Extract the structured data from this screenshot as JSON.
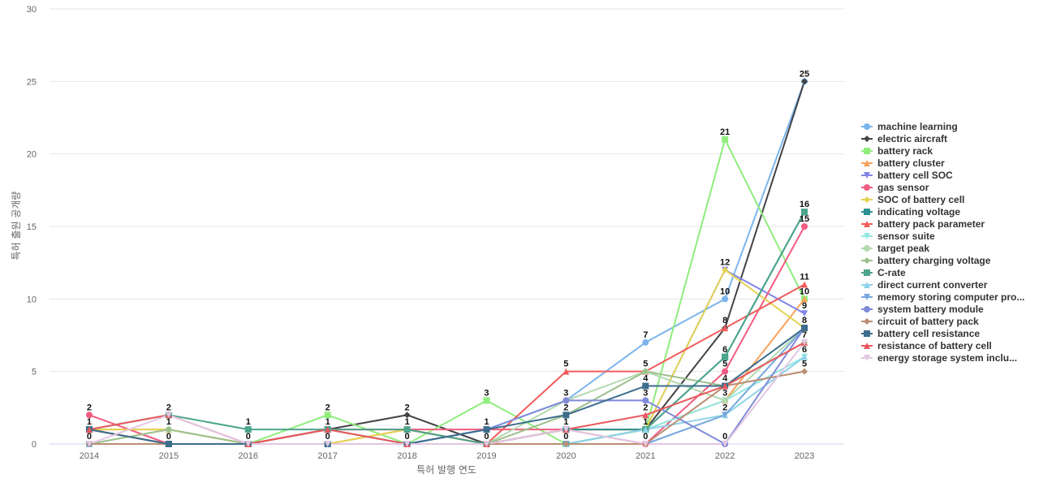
{
  "chart_data": {
    "type": "line",
    "title": "",
    "xlabel": "특허 발행 연도",
    "ylabel": "특허 출원 공개량",
    "x": [
      "2014",
      "2015",
      "2016",
      "2017",
      "2018",
      "2019",
      "2020",
      "2021",
      "2022",
      "2023"
    ],
    "yticks": [
      "0",
      "5",
      "10",
      "15",
      "20",
      "25",
      "30"
    ],
    "ylim": [
      0,
      30
    ],
    "grid": true,
    "legend_position": "right",
    "series": [
      {
        "name": "machine learning",
        "color": "#7cb5ec",
        "marker": "circle",
        "values": [
          0,
          0,
          0,
          0,
          0,
          1,
          3,
          7,
          10,
          25
        ]
      },
      {
        "name": "electric aircraft",
        "color": "#434348",
        "marker": "diamond",
        "values": [
          1,
          0,
          0,
          1,
          2,
          0,
          1,
          1,
          8,
          25
        ]
      },
      {
        "name": "battery rack",
        "color": "#90ed7d",
        "marker": "square",
        "values": [
          0,
          0,
          0,
          2,
          0,
          3,
          0,
          1,
          21,
          10
        ]
      },
      {
        "name": "battery cluster",
        "color": "#f7a35c",
        "marker": "triangle",
        "values": [
          1,
          1,
          0,
          0,
          1,
          0,
          1,
          1,
          3,
          10
        ]
      },
      {
        "name": "battery cell SOC",
        "color": "#8085e9",
        "marker": "triangle-down",
        "values": [
          0,
          0,
          0,
          0,
          0,
          0,
          1,
          1,
          12,
          9
        ]
      },
      {
        "name": "gas sensor",
        "color": "#f15c80",
        "marker": "circle",
        "values": [
          2,
          0,
          0,
          1,
          1,
          1,
          1,
          0,
          5,
          15
        ]
      },
      {
        "name": "SOC of battery cell",
        "color": "#e4d354",
        "marker": "diamond",
        "values": [
          1,
          1,
          0,
          0,
          1,
          0,
          1,
          1,
          12,
          8
        ]
      },
      {
        "name": "indicating voltage",
        "color": "#2b908f",
        "marker": "square",
        "values": [
          1,
          0,
          0,
          1,
          0,
          0,
          1,
          1,
          6,
          16
        ]
      },
      {
        "name": "battery pack parameter",
        "color": "#f45b5b",
        "marker": "triangle",
        "values": [
          1,
          0,
          0,
          1,
          1,
          0,
          5,
          5,
          8,
          11
        ]
      },
      {
        "name": "sensor suite",
        "color": "#91e8e1",
        "marker": "triangle-down",
        "values": [
          0,
          0,
          0,
          0,
          0,
          0,
          0,
          1,
          3,
          6
        ]
      },
      {
        "name": "target peak",
        "color": "#b3d9b0",
        "marker": "circle",
        "values": [
          0,
          1,
          0,
          0,
          0,
          0,
          3,
          5,
          3,
          8
        ]
      },
      {
        "name": "battery charging voltage",
        "color": "#9dc08b",
        "marker": "diamond",
        "values": [
          0,
          1,
          0,
          0,
          0,
          0,
          2,
          5,
          4,
          7
        ]
      },
      {
        "name": "C-rate",
        "color": "#4ca58c",
        "marker": "square",
        "values": [
          1,
          2,
          1,
          1,
          1,
          0,
          0,
          1,
          6,
          16
        ]
      },
      {
        "name": "direct current converter",
        "color": "#8fd3e8",
        "marker": "triangle",
        "values": [
          0,
          0,
          0,
          0,
          0,
          0,
          0,
          1,
          2,
          6
        ]
      },
      {
        "name": "memory storing computer pro...",
        "color": "#75a7dd",
        "marker": "triangle-down",
        "values": [
          0,
          0,
          0,
          0,
          0,
          0,
          0,
          0,
          2,
          8
        ]
      },
      {
        "name": "system battery module",
        "color": "#7f8ad8",
        "marker": "circle",
        "values": [
          0,
          0,
          0,
          0,
          0,
          1,
          3,
          3,
          0,
          8
        ]
      },
      {
        "name": "circuit of battery pack",
        "color": "#bb8d73",
        "marker": "diamond",
        "values": [
          0,
          0,
          0,
          0,
          0,
          0,
          0,
          0,
          4,
          5
        ]
      },
      {
        "name": "battery cell resistance",
        "color": "#3d6e8c",
        "marker": "square",
        "values": [
          1,
          0,
          0,
          0,
          0,
          1,
          2,
          4,
          4,
          8
        ]
      },
      {
        "name": "resistance of battery cell",
        "color": "#e8585d",
        "marker": "triangle",
        "values": [
          1,
          2,
          0,
          1,
          0,
          0,
          1,
          2,
          4,
          7
        ]
      },
      {
        "name": "energy storage system inclu...",
        "color": "#e2c6e2",
        "marker": "triangle-down",
        "values": [
          0,
          2,
          0,
          0,
          0,
          0,
          1,
          0,
          0,
          7
        ]
      }
    ],
    "data_labels": [
      {
        "x": "2014",
        "text": "2",
        "value": 2
      },
      {
        "x": "2014",
        "text": "1",
        "value": 1
      },
      {
        "x": "2014",
        "text": "0",
        "value": 0
      },
      {
        "x": "2015",
        "text": "2",
        "value": 2
      },
      {
        "x": "2015",
        "text": "1",
        "value": 1
      },
      {
        "x": "2015",
        "text": "0",
        "value": 0
      },
      {
        "x": "2016",
        "text": "1",
        "value": 1
      },
      {
        "x": "2016",
        "text": "0",
        "value": 0
      },
      {
        "x": "2017",
        "text": "2",
        "value": 2
      },
      {
        "x": "2017",
        "text": "1",
        "value": 1
      },
      {
        "x": "2017",
        "text": "0",
        "value": 0
      },
      {
        "x": "2018",
        "text": "2",
        "value": 2
      },
      {
        "x": "2018",
        "text": "1",
        "value": 1
      },
      {
        "x": "2018",
        "text": "0",
        "value": 0
      },
      {
        "x": "2019",
        "text": "3",
        "value": 3
      },
      {
        "x": "2019",
        "text": "1",
        "value": 1
      },
      {
        "x": "2019",
        "text": "0",
        "value": 0
      },
      {
        "x": "2020",
        "text": "5",
        "value": 5
      },
      {
        "x": "2020",
        "text": "3",
        "value": 3
      },
      {
        "x": "2020",
        "text": "2",
        "value": 2
      },
      {
        "x": "2020",
        "text": "1",
        "value": 1
      },
      {
        "x": "2020",
        "text": "0",
        "value": 0
      },
      {
        "x": "2021",
        "text": "7",
        "value": 7
      },
      {
        "x": "2021",
        "text": "5",
        "value": 5
      },
      {
        "x": "2021",
        "text": "4",
        "value": 4
      },
      {
        "x": "2021",
        "text": "3",
        "value": 3
      },
      {
        "x": "2021",
        "text": "2",
        "value": 2
      },
      {
        "x": "2021",
        "text": "1",
        "value": 1
      },
      {
        "x": "2021",
        "text": "0",
        "value": 0
      },
      {
        "x": "2022",
        "text": "21",
        "value": 21
      },
      {
        "x": "2022",
        "text": "12",
        "value": 12
      },
      {
        "x": "2022",
        "text": "10",
        "value": 10
      },
      {
        "x": "2022",
        "text": "8",
        "value": 8
      },
      {
        "x": "2022",
        "text": "6",
        "value": 6
      },
      {
        "x": "2022",
        "text": "5",
        "value": 5
      },
      {
        "x": "2022",
        "text": "4",
        "value": 4
      },
      {
        "x": "2022",
        "text": "3",
        "value": 3
      },
      {
        "x": "2022",
        "text": "2",
        "value": 2
      },
      {
        "x": "2022",
        "text": "0",
        "value": 0
      },
      {
        "x": "2023",
        "text": "25",
        "value": 25
      },
      {
        "x": "2023",
        "text": "16",
        "value": 16
      },
      {
        "x": "2023",
        "text": "15",
        "value": 15
      },
      {
        "x": "2023",
        "text": "11",
        "value": 11
      },
      {
        "x": "2023",
        "text": "10",
        "value": 10
      },
      {
        "x": "2023",
        "text": "9",
        "value": 9
      },
      {
        "x": "2023",
        "text": "8",
        "value": 8
      },
      {
        "x": "2023",
        "text": "7",
        "value": 7
      },
      {
        "x": "2023",
        "text": "6",
        "value": 6
      },
      {
        "x": "2023",
        "text": "5",
        "value": 5
      }
    ]
  }
}
